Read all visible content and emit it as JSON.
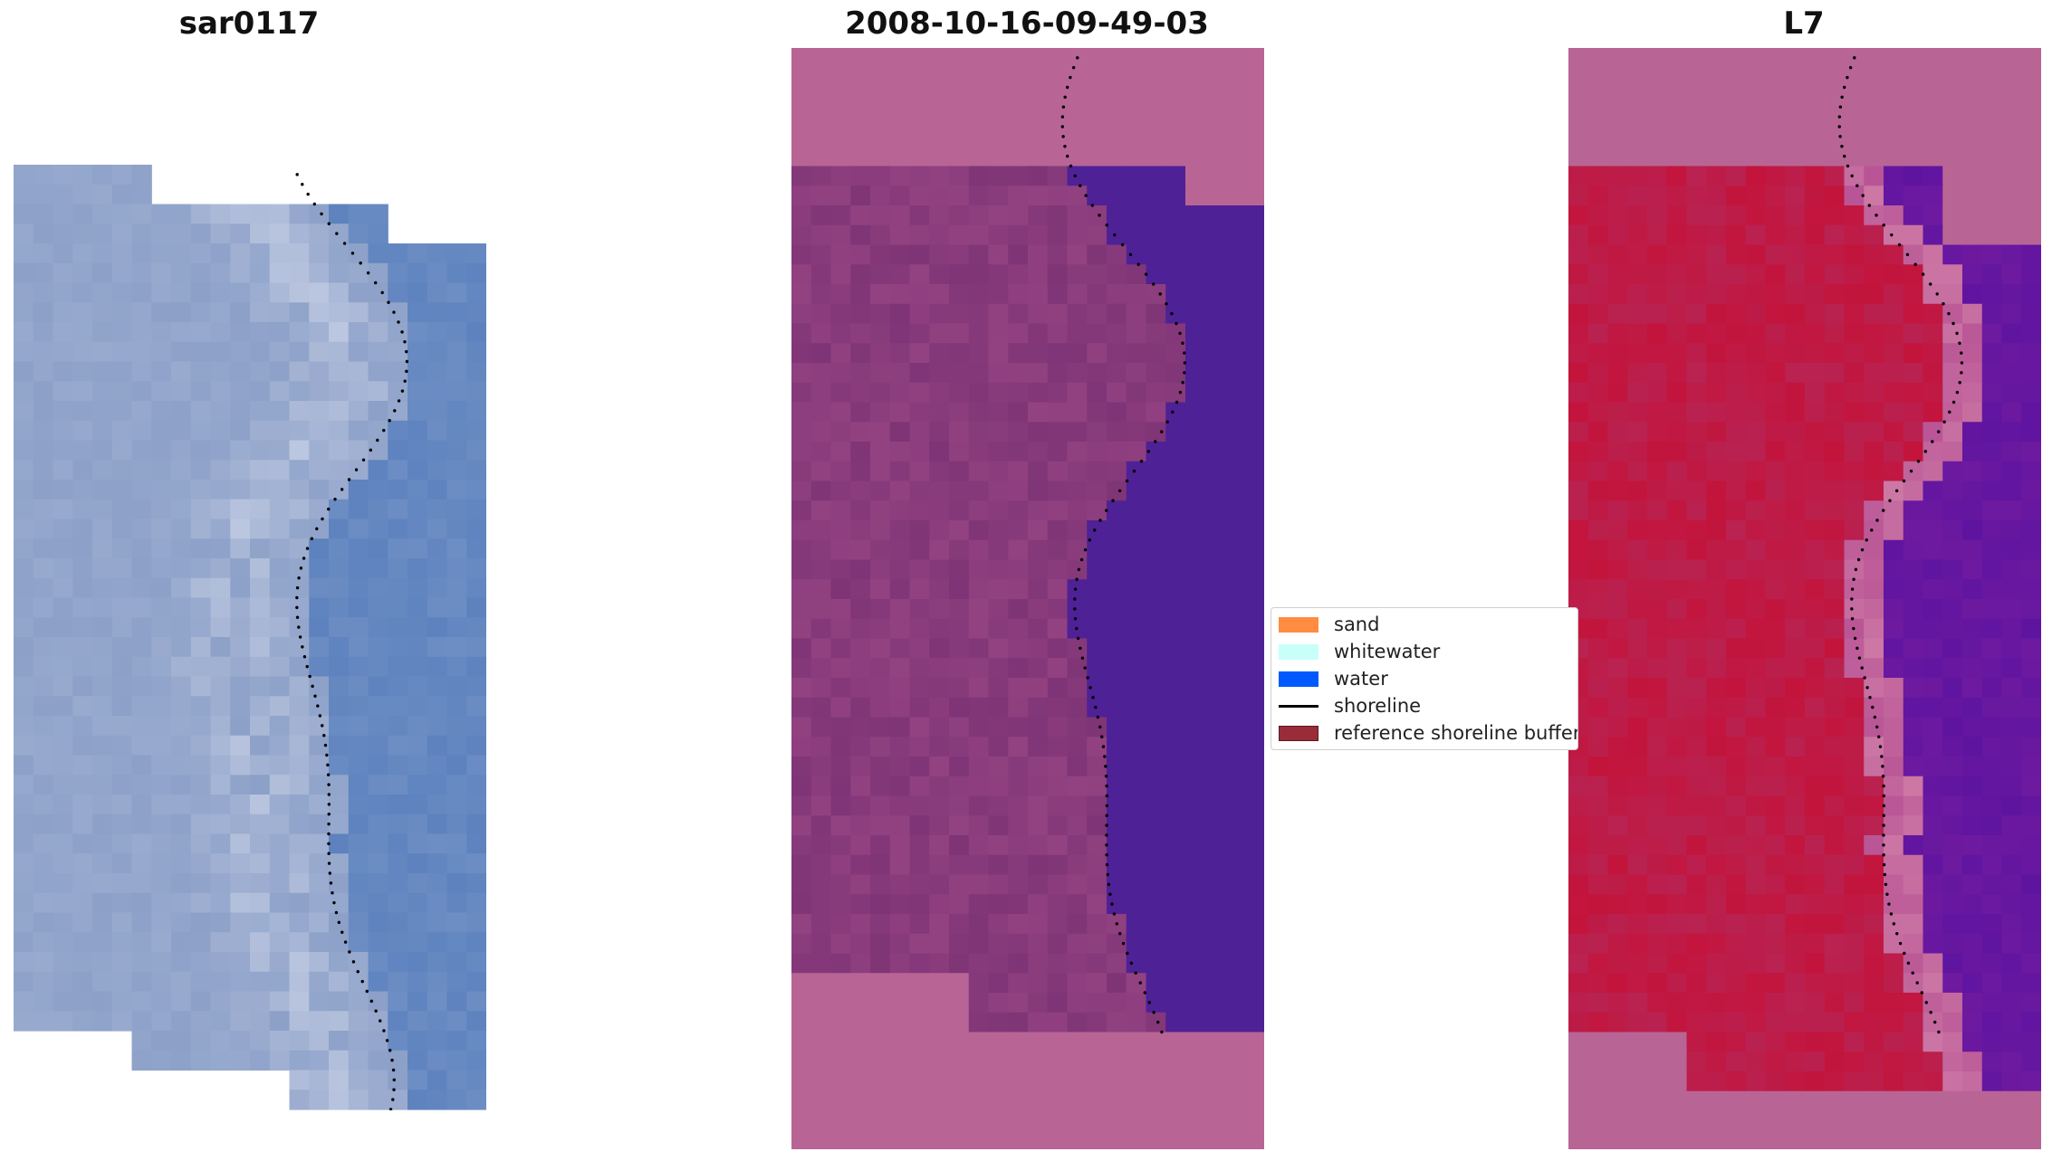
{
  "panels": [
    {
      "title": "sar0117"
    },
    {
      "title": "2008-10-16-09-49-03"
    },
    {
      "title": "L7"
    }
  ],
  "legend": {
    "items": [
      {
        "label": "sand",
        "color": "#ff8c40",
        "kind": "patch"
      },
      {
        "label": "whitewater",
        "color": "#c8fff8",
        "kind": "patch"
      },
      {
        "label": "water",
        "color": "#0059ff",
        "kind": "patch"
      },
      {
        "label": "shoreline",
        "color": "#000000",
        "kind": "line"
      },
      {
        "label": "reference shoreline buffer",
        "color": "#9a2c3a",
        "kind": "patch"
      }
    ]
  },
  "colors": {
    "rgb_bluish": "#8da2c7",
    "water_class": "#4f2196",
    "buffer_overlay": "#b8558f",
    "land_class": "#8a3d80",
    "swir_red": "#c8103c",
    "swir_purple": "#6a14a0"
  }
}
